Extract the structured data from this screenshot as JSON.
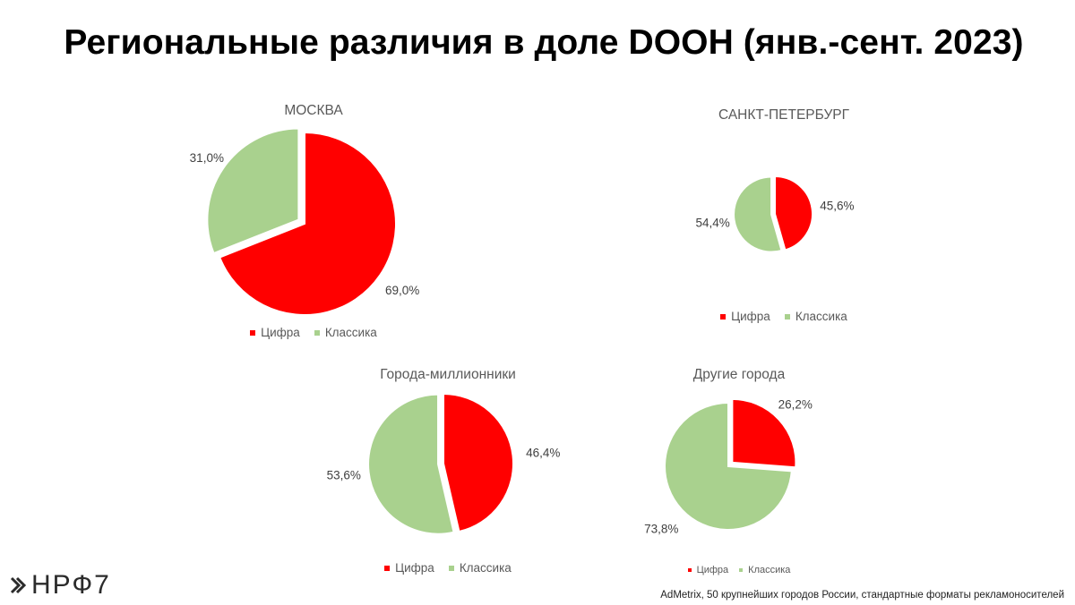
{
  "title": "Региональные различия в доле DOOH (янв.-сент. 2023)",
  "legend": {
    "digital": "Цифра",
    "classic": "Классика"
  },
  "colors": {
    "digital": "#ff0000",
    "classic": "#a9d18e"
  },
  "logo": {
    "text": "НРФ7",
    "icon": "nrf-logo-icon"
  },
  "source": "AdMetrix, 50 крупнейших городов России, стандартные форматы рекламоносителей",
  "chart_data": [
    {
      "type": "pie",
      "title": "МОСКВА",
      "categories": [
        "Цифра",
        "Классика"
      ],
      "values": [
        69.0,
        31.0
      ],
      "labels": [
        "69,0%",
        "31,0%"
      ],
      "exploded": "Классика",
      "legend_position": "bottom"
    },
    {
      "type": "pie",
      "title": "САНКТ-ПЕТЕРБУРГ",
      "categories": [
        "Цифра",
        "Классика"
      ],
      "values": [
        45.6,
        54.4
      ],
      "labels": [
        "45,6%",
        "54,4%"
      ],
      "exploded": "Классика",
      "legend_position": "bottom"
    },
    {
      "type": "pie",
      "title": "Города-миллионники",
      "categories": [
        "Цифра",
        "Классика"
      ],
      "values": [
        46.4,
        53.6
      ],
      "labels": [
        "46,4%",
        "53,6%"
      ],
      "exploded": "Классика",
      "legend_position": "bottom"
    },
    {
      "type": "pie",
      "title": "Другие города",
      "categories": [
        "Цифра",
        "Классика"
      ],
      "values": [
        26.2,
        73.8
      ],
      "labels": [
        "26,2%",
        "73,8%"
      ],
      "exploded": "Цифра",
      "legend_position": "bottom"
    }
  ]
}
